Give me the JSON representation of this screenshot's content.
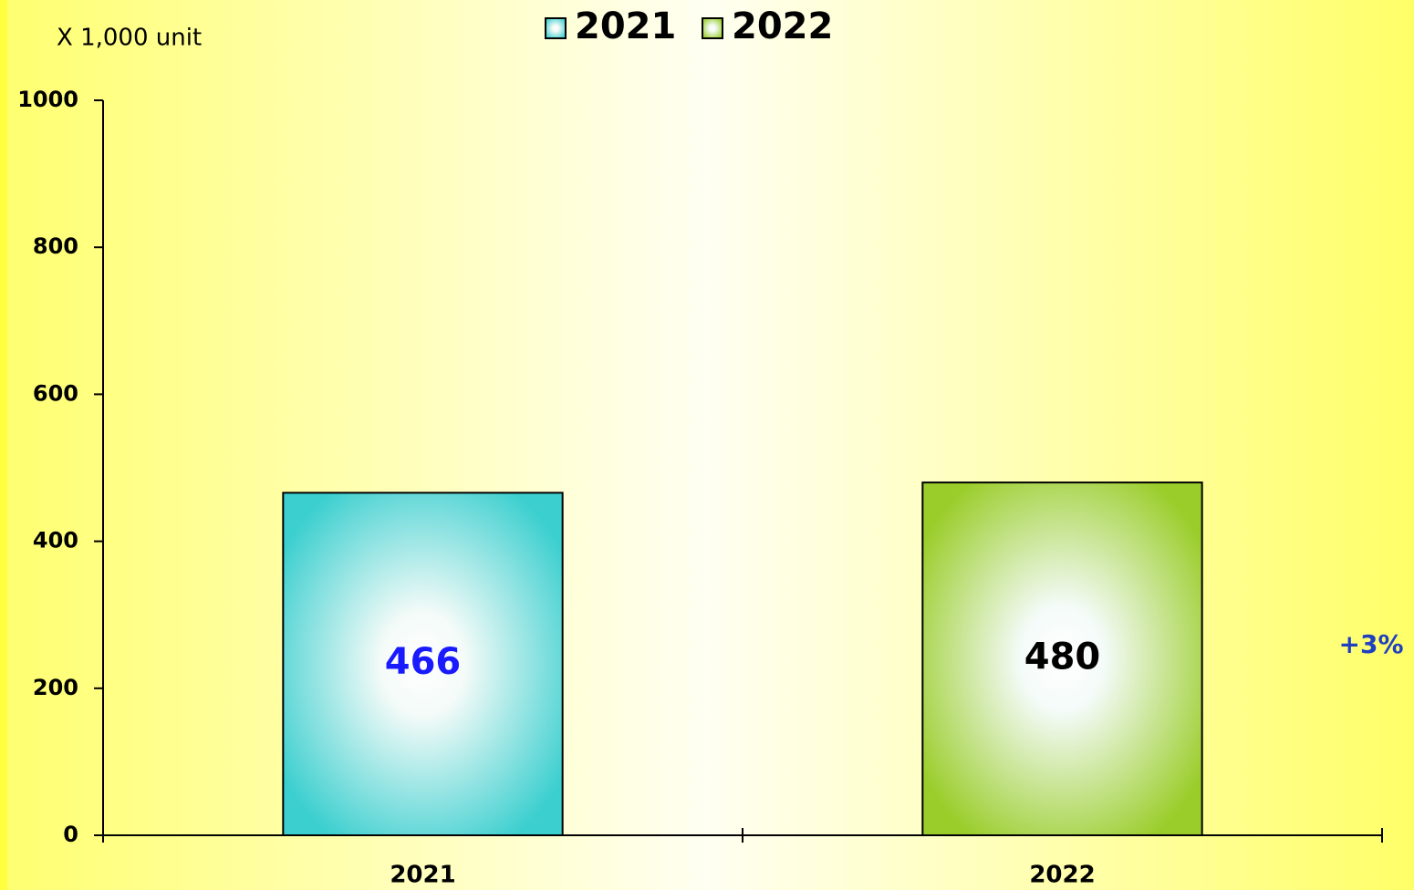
{
  "chart_data": {
    "type": "bar",
    "y_axis_label": "X 1,000 unit",
    "categories": [
      "2021",
      "2022"
    ],
    "series": [
      {
        "name": "2021",
        "color": "#3ccfcf",
        "label_color": "#1a1aff",
        "values": [
          466,
          null
        ]
      },
      {
        "name": "2022",
        "color": "#9acd2a",
        "label_color": "#000000",
        "values": [
          null,
          480
        ]
      }
    ],
    "annotation": "+3%",
    "ylim": [
      0,
      1000
    ],
    "yticks": [
      0,
      200,
      400,
      600,
      800,
      1000
    ],
    "legend": "top"
  }
}
